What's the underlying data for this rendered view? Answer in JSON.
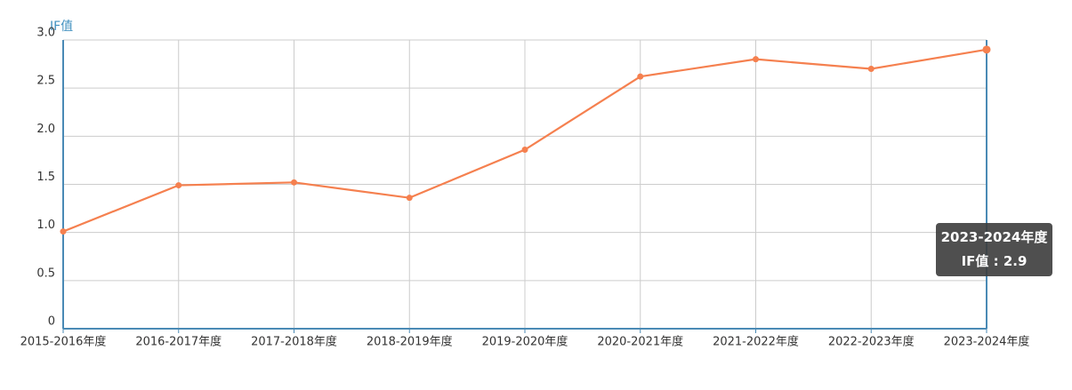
{
  "chart_data": {
    "type": "line",
    "y_label": "IF值",
    "categories": [
      "2015-2016年度",
      "2016-2017年度",
      "2017-2018年度",
      "2018-2019年度",
      "2019-2020年度",
      "2020-2021年度",
      "2021-2022年度",
      "2022-2023年度",
      "2023-2024年度"
    ],
    "series": [
      {
        "name": "IF值",
        "color": "#f5804f",
        "values": [
          1.01,
          1.49,
          1.52,
          1.36,
          1.86,
          2.62,
          2.8,
          2.7,
          2.9
        ]
      }
    ],
    "ylim": [
      0,
      3
    ],
    "yticks": [
      0,
      0.5,
      {
        "value": 1,
        "label": "1.0"
      },
      1.5,
      {
        "value": 2,
        "label": "2.0"
      },
      2.5,
      {
        "value": 3,
        "label": "3.0"
      }
    ],
    "grid": true,
    "tooltip": {
      "title": "2023-2024年度",
      "text": "IF值 : 2.9"
    }
  }
}
